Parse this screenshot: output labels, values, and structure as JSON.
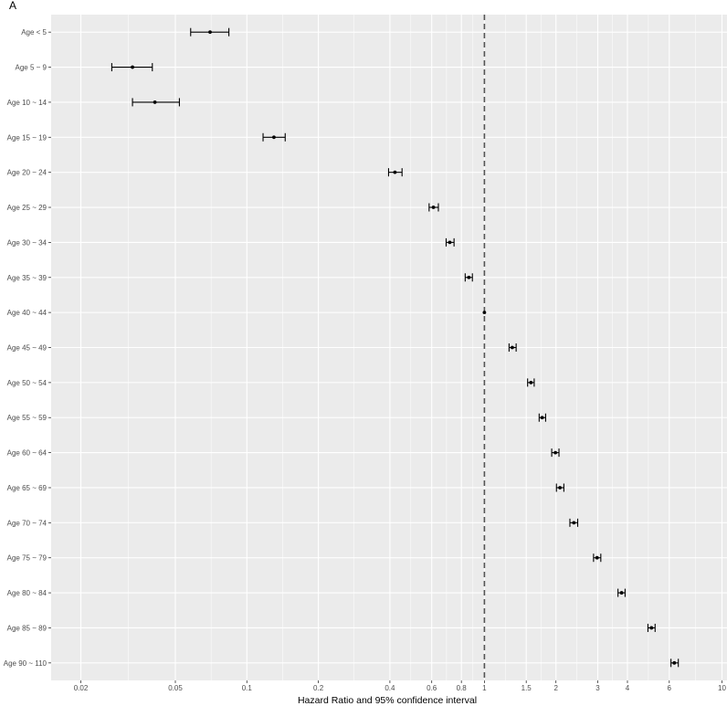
{
  "panel_tag": "A",
  "chart_data": {
    "type": "scatter",
    "subtype": "forest-plot",
    "title": "",
    "xlabel": "Hazard Ratio and 95% confidence interval",
    "ylabel": "",
    "xscale": "log",
    "xlim": [
      0.015,
      10.5
    ],
    "xticks": [
      {
        "value": 0.02,
        "label": "0.02"
      },
      {
        "value": 0.05,
        "label": "0.05"
      },
      {
        "value": 0.1,
        "label": "0.1"
      },
      {
        "value": 0.2,
        "label": "0.2"
      },
      {
        "value": 0.4,
        "label": "0.4"
      },
      {
        "value": 0.6,
        "label": "0.6"
      },
      {
        "value": 0.8,
        "label": "0.8"
      },
      {
        "value": 1,
        "label": "1"
      },
      {
        "value": 1.5,
        "label": "1.5"
      },
      {
        "value": 2,
        "label": "2"
      },
      {
        "value": 3,
        "label": "3"
      },
      {
        "value": 4,
        "label": "4"
      },
      {
        "value": 6,
        "label": "6"
      },
      {
        "value": 10,
        "label": "10"
      }
    ],
    "reference_line": 1,
    "grid": true,
    "legend": "none",
    "colors": {
      "panel": "#ebebeb",
      "grid": "#ffffff",
      "mark": "#000000",
      "reference": "#555555",
      "tick_text": "#4d4d4d"
    },
    "categories": [
      "Age < 5",
      "Age 5 ~ 9",
      "Age 10 ~ 14",
      "Age 15 ~ 19",
      "Age 20 ~ 24",
      "Age 25 ~ 29",
      "Age 30 ~ 34",
      "Age 35 ~ 39",
      "Age 40 ~ 44",
      "Age 45 ~ 49",
      "Age 50 ~ 54",
      "Age 55 ~ 59",
      "Age 60 ~ 64",
      "Age 65 ~ 69",
      "Age 70 ~ 74",
      "Age 75 ~ 79",
      "Age 80 ~ 84",
      "Age 85 ~ 89",
      "Age 90 ~ 110"
    ],
    "estimates": [
      {
        "label": "Age < 5",
        "hr": 0.07,
        "lower": 0.058,
        "upper": 0.084
      },
      {
        "label": "Age 5 ~ 9",
        "hr": 0.033,
        "lower": 0.027,
        "upper": 0.04
      },
      {
        "label": "Age 10 ~ 14",
        "hr": 0.041,
        "lower": 0.033,
        "upper": 0.052
      },
      {
        "label": "Age 15 ~ 19",
        "hr": 0.13,
        "lower": 0.117,
        "upper": 0.145
      },
      {
        "label": "Age 20 ~ 24",
        "hr": 0.42,
        "lower": 0.395,
        "upper": 0.45
      },
      {
        "label": "Age 25 ~ 29",
        "hr": 0.61,
        "lower": 0.585,
        "upper": 0.64
      },
      {
        "label": "Age 30 ~ 34",
        "hr": 0.715,
        "lower": 0.69,
        "upper": 0.745
      },
      {
        "label": "Age 35 ~ 39",
        "hr": 0.86,
        "lower": 0.83,
        "upper": 0.89
      },
      {
        "label": "Age 40 ~ 44",
        "hr": 1.0,
        "lower": 1.0,
        "upper": 1.0
      },
      {
        "label": "Age 45 ~ 49",
        "hr": 1.31,
        "lower": 1.27,
        "upper": 1.36
      },
      {
        "label": "Age 50 ~ 54",
        "hr": 1.57,
        "lower": 1.52,
        "upper": 1.62
      },
      {
        "label": "Age 55 ~ 59",
        "hr": 1.75,
        "lower": 1.7,
        "upper": 1.81
      },
      {
        "label": "Age 60 ~ 64",
        "hr": 1.99,
        "lower": 1.92,
        "upper": 2.06
      },
      {
        "label": "Age 65 ~ 69",
        "hr": 2.08,
        "lower": 2.01,
        "upper": 2.16
      },
      {
        "label": "Age 70 ~ 74",
        "hr": 2.38,
        "lower": 2.29,
        "upper": 2.47
      },
      {
        "label": "Age 75 ~ 79",
        "hr": 2.98,
        "lower": 2.88,
        "upper": 3.09
      },
      {
        "label": "Age 80 ~ 84",
        "hr": 3.78,
        "lower": 3.65,
        "upper": 3.91
      },
      {
        "label": "Age 85 ~ 89",
        "hr": 5.05,
        "lower": 4.88,
        "upper": 5.23
      },
      {
        "label": "Age 90 ~ 110",
        "hr": 6.3,
        "lower": 6.1,
        "upper": 6.55
      }
    ]
  }
}
